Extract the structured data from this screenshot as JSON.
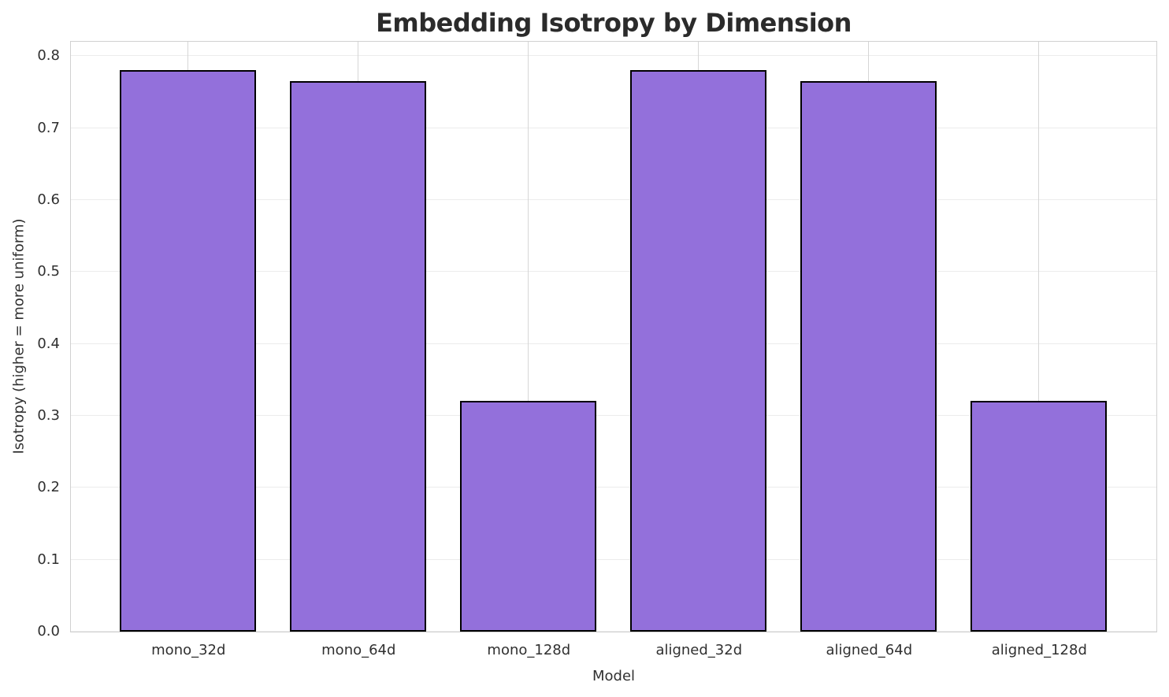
{
  "chart_data": {
    "type": "bar",
    "title": "Embedding Isotropy by Dimension",
    "xlabel": "Model",
    "ylabel": "Isotropy (higher = more uniform)",
    "categories": [
      "mono_32d",
      "mono_64d",
      "mono_128d",
      "aligned_32d",
      "aligned_64d",
      "aligned_128d"
    ],
    "values": [
      0.78,
      0.765,
      0.32,
      0.78,
      0.765,
      0.32
    ],
    "ylim": [
      0,
      0.82
    ],
    "yticks": [
      0.0,
      0.1,
      0.2,
      0.3,
      0.4,
      0.5,
      0.6,
      0.7,
      0.8
    ],
    "ytick_labels": [
      "0.0",
      "0.1",
      "0.2",
      "0.3",
      "0.4",
      "0.5",
      "0.6",
      "0.7",
      "0.8"
    ],
    "grid": true,
    "legend_position": "none",
    "colors": {
      "bar_fill": "#9370db",
      "bar_edge": "#000000",
      "grid_horizontal": "#ececec",
      "grid_vertical": "#d6d6d6",
      "spine": "#d0d0d0",
      "tick_text": "#303030",
      "title_text": "#2b2b2b",
      "background": "#ffffff"
    }
  }
}
